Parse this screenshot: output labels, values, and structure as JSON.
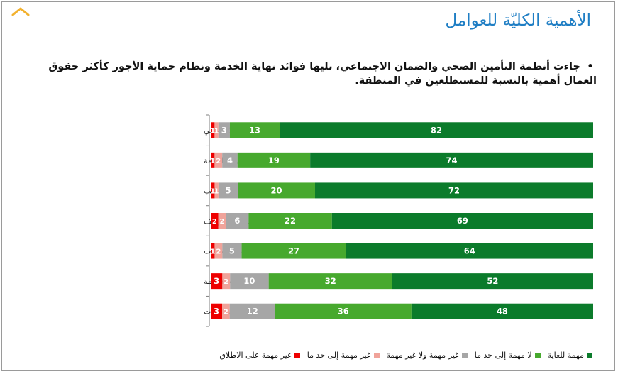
{
  "title": "الأهمية الكليّة للعوامل",
  "bullet": "جاءت أنظمة التأمين الصحي والضمان الاجتماعي، تليها فوائد نهاية الخدمة ونظام حماية الأجور كأكثر حقوق العمال أهمية بالنسبة للمستطلعين في المنطقة.",
  "colors": {
    "title": "#1f7ec4",
    "series": [
      "#ee0000",
      "#f0a39a",
      "#a6a6a6",
      "#47a92e",
      "#0b7b2b"
    ]
  },
  "chart_data": {
    "type": "bar",
    "stacked": true,
    "orientation": "horizontal",
    "categories": [
      "التأمين الصحي والضمان الاجتماعي",
      "فوائد نهاية الخدمة",
      "نظام حماية الأجور/ الرواتب",
      "حقوق إنهاء خدمات الموظف",
      "بدلات العطلات/ الإجازات",
      "بدلات الأمومة",
      "الاستباقية في صنع السياسات"
    ],
    "series": [
      {
        "name": "غير مهمة على الاطلاق",
        "values": [
          1,
          1,
          1,
          2,
          1,
          3,
          3
        ]
      },
      {
        "name": "غير مهمة إلى حد ما",
        "values": [
          1,
          2,
          1,
          2,
          2,
          2,
          2
        ]
      },
      {
        "name": "غير مهمة ولا غير مهمة",
        "values": [
          3,
          4,
          5,
          6,
          5,
          10,
          12
        ]
      },
      {
        "name": "لا مهمة إلى حد ما",
        "values": [
          13,
          19,
          20,
          22,
          27,
          32,
          36
        ]
      },
      {
        "name": "مهمة للغاية",
        "values": [
          82,
          74,
          72,
          69,
          64,
          52,
          48
        ]
      }
    ],
    "legend_position": "bottom-right",
    "grid": false
  }
}
